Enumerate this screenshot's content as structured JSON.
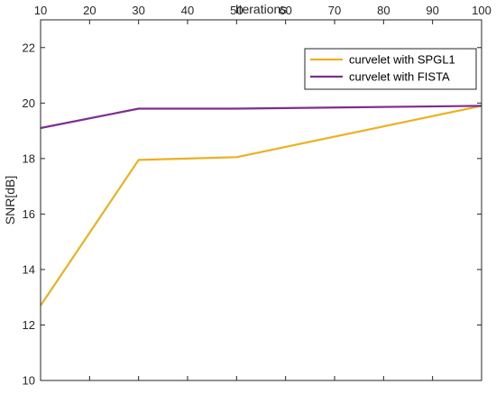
{
  "chart_data": {
    "type": "line",
    "title": "",
    "xlabel": "Iterations",
    "ylabel": "SNR[dB]",
    "xlim": [
      10,
      100
    ],
    "ylim": [
      10,
      23
    ],
    "xticks": [
      10,
      20,
      30,
      40,
      50,
      60,
      70,
      80,
      90,
      100
    ],
    "yticks": [
      10,
      12,
      14,
      16,
      18,
      20,
      22
    ],
    "x_axis_position": "top",
    "grid": false,
    "legend_position": "top-right",
    "x": [
      10,
      30,
      50,
      100
    ],
    "series": [
      {
        "name": "curvelet with SPGL1",
        "values": [
          12.7,
          17.95,
          18.05,
          19.9
        ],
        "color": "#EDB120"
      },
      {
        "name": "curvelet with FISTA",
        "values": [
          19.1,
          19.8,
          19.8,
          19.9
        ],
        "color": "#7E2F8E"
      }
    ]
  }
}
